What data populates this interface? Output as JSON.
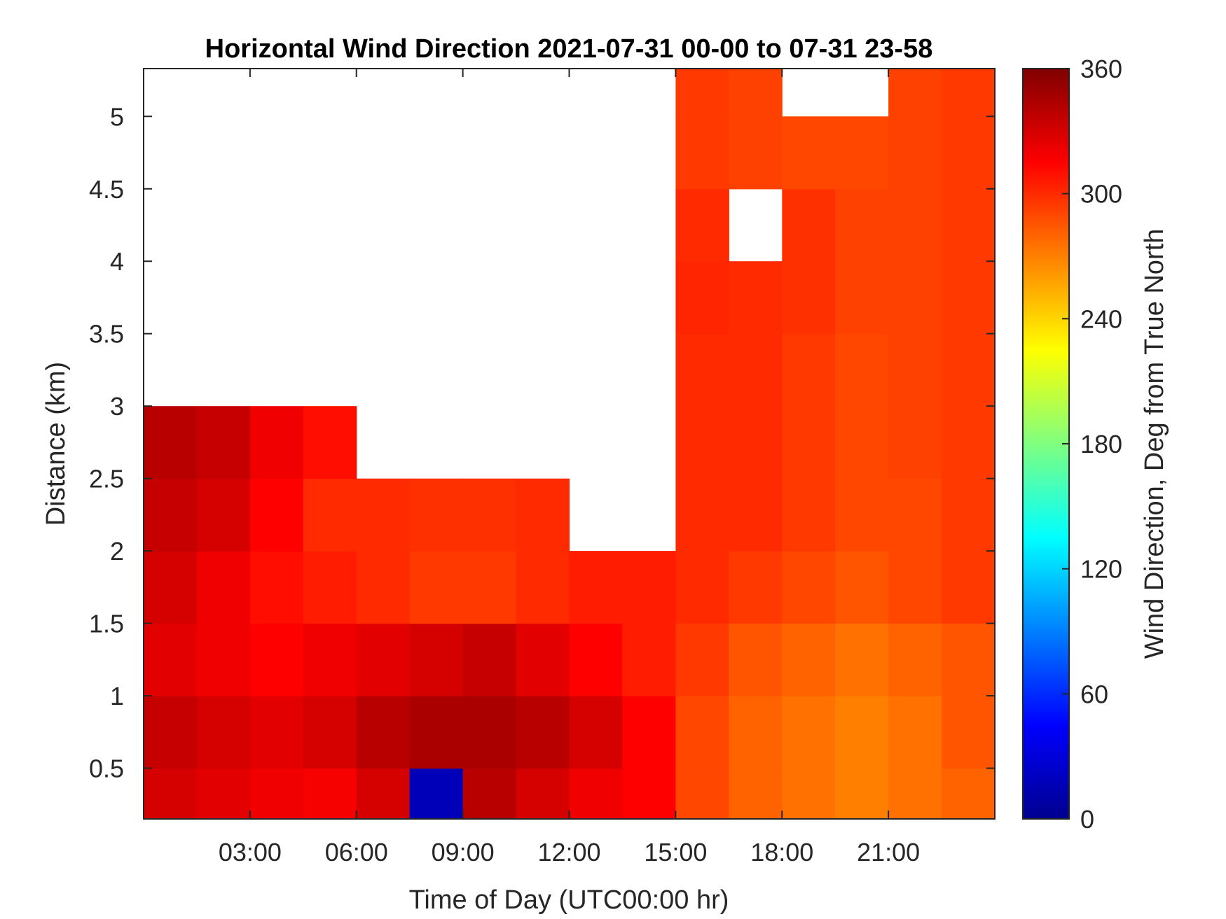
{
  "chart_data": {
    "type": "heatmap",
    "title": "Horizontal Wind Direction 2021-07-31 00-00 to 07-31 23-58",
    "xlabel": "Time of Day (UTC00:00 hr)",
    "ylabel": "Distance (km)",
    "xlim": [
      0,
      24
    ],
    "ylim": [
      0.15,
      5.33
    ],
    "x_ticks": [
      3,
      6,
      9,
      12,
      15,
      18,
      21
    ],
    "x_tick_labels": [
      "03:00",
      "06:00",
      "09:00",
      "12:00",
      "15:00",
      "18:00",
      "21:00"
    ],
    "y_ticks": [
      0.5,
      1,
      1.5,
      2,
      2.5,
      3,
      3.5,
      4,
      4.5,
      5
    ],
    "y_tick_labels": [
      "0.5",
      "1",
      "1.5",
      "2",
      "2.5",
      "3",
      "3.5",
      "4",
      "4.5",
      "5"
    ],
    "colorbar": {
      "label": "Wind Direction, Deg from True North",
      "range": [
        0,
        360
      ],
      "ticks": [
        0,
        60,
        120,
        180,
        240,
        300,
        360
      ],
      "tick_labels": [
        "0",
        "60",
        "120",
        "180",
        "240",
        "300",
        "360"
      ],
      "colormap": "jet"
    },
    "grid": false,
    "time_bins_hr": [
      0,
      1.5,
      3,
      4.5,
      6,
      7.5,
      9,
      10.5,
      12,
      13.5,
      15,
      16.5,
      18,
      19.5,
      21,
      22.5,
      24
    ],
    "height_bins_km": [
      0.15,
      0.5,
      1.0,
      1.5,
      2.0,
      2.5,
      3.0,
      3.5,
      4.0,
      4.5,
      5.0,
      5.33
    ],
    "values_deg": [
      [
        330,
        325,
        320,
        318,
        330,
        20,
        340,
        330,
        320,
        315,
        290,
        280,
        275,
        270,
        275,
        280
      ],
      [
        335,
        330,
        325,
        330,
        340,
        345,
        345,
        340,
        330,
        315,
        290,
        280,
        275,
        270,
        275,
        285
      ],
      [
        325,
        320,
        315,
        320,
        325,
        330,
        335,
        325,
        315,
        305,
        295,
        285,
        280,
        275,
        280,
        285
      ],
      [
        330,
        320,
        310,
        305,
        300,
        295,
        295,
        300,
        305,
        305,
        300,
        295,
        290,
        285,
        290,
        295
      ],
      [
        335,
        330,
        315,
        300,
        300,
        298,
        298,
        300,
        null,
        null,
        300,
        300,
        295,
        290,
        290,
        295
      ],
      [
        340,
        335,
        320,
        310,
        null,
        null,
        null,
        null,
        null,
        null,
        300,
        300,
        295,
        290,
        292,
        295
      ],
      [
        null,
        null,
        null,
        null,
        null,
        null,
        null,
        null,
        null,
        null,
        300,
        300,
        295,
        290,
        292,
        295
      ],
      [
        null,
        null,
        null,
        null,
        null,
        null,
        null,
        null,
        null,
        null,
        302,
        300,
        298,
        292,
        292,
        295
      ],
      [
        null,
        null,
        null,
        null,
        null,
        null,
        null,
        null,
        null,
        null,
        300,
        null,
        298,
        292,
        292,
        295
      ],
      [
        null,
        null,
        null,
        null,
        null,
        null,
        null,
        null,
        null,
        null,
        295,
        292,
        290,
        290,
        292,
        295
      ],
      [
        null,
        null,
        null,
        null,
        null,
        null,
        null,
        null,
        null,
        null,
        295,
        292,
        null,
        null,
        292,
        295
      ]
    ]
  }
}
